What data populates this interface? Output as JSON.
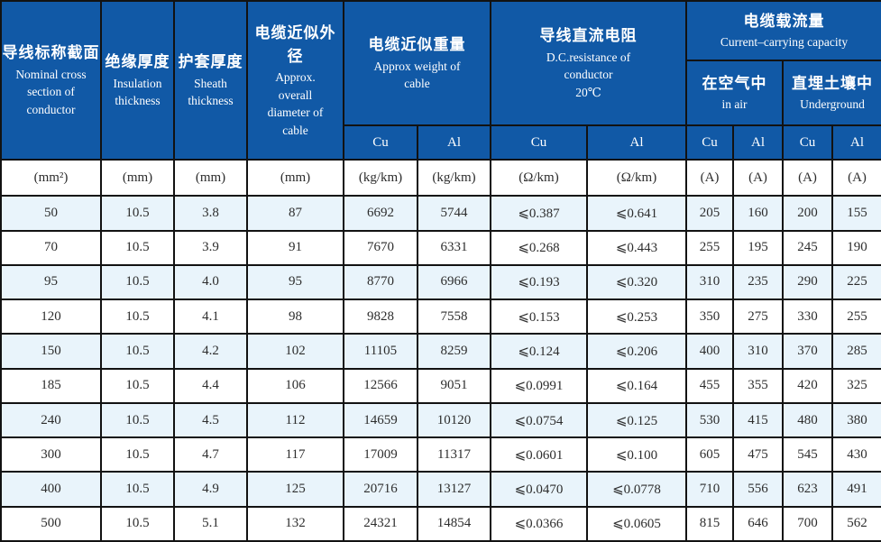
{
  "colors": {
    "header_bg": "#1159a6",
    "header_text": "#ffffff",
    "row_alt_bg": "#e9f4fb",
    "row_bg": "#ffffff",
    "border": "#121212",
    "cell_text": "#2d2d2d"
  },
  "table": {
    "groups": {
      "nominal": {
        "zh": "导线标称截面",
        "en": "Nominal cross section of conductor"
      },
      "insulation": {
        "zh": "绝缘厚度",
        "en": "Insulation thickness"
      },
      "sheath": {
        "zh": "护套厚度",
        "en": "Sheath thickness"
      },
      "diameter": {
        "zh": "电缆近似外径",
        "en": "Approx. overall diameter of cable"
      },
      "weight": {
        "zh": "电缆近似重量",
        "en": "Approx weight of cable"
      },
      "resistance": {
        "zh": "导线直流电阻",
        "en": "D.C.resistance of conductor",
        "temp": "20℃"
      },
      "capacity": {
        "zh": "电缆载流量",
        "en": "Current–carrying capacity"
      },
      "in_air": {
        "zh": "在空气中",
        "en": "in air"
      },
      "underground": {
        "zh": "直埋土壤中",
        "en": "Underground"
      }
    },
    "material_labels": [
      "Cu",
      "Al",
      "Cu",
      "Al",
      "Cu",
      "Al",
      "Cu",
      "Al"
    ],
    "units": [
      "(mm²)",
      "(mm)",
      "(mm)",
      "(mm)",
      "(kg/km)",
      "(kg/km)",
      "(Ω/km)",
      "(Ω/km)",
      "(A)",
      "(A)",
      "(A)",
      "(A)"
    ],
    "rows": [
      [
        "50",
        "10.5",
        "3.8",
        "87",
        "6692",
        "5744",
        "⩽0.387",
        "⩽0.641",
        "205",
        "160",
        "200",
        "155"
      ],
      [
        "70",
        "10.5",
        "3.9",
        "91",
        "7670",
        "6331",
        "⩽0.268",
        "⩽0.443",
        "255",
        "195",
        "245",
        "190"
      ],
      [
        "95",
        "10.5",
        "4.0",
        "95",
        "8770",
        "6966",
        "⩽0.193",
        "⩽0.320",
        "310",
        "235",
        "290",
        "225"
      ],
      [
        "120",
        "10.5",
        "4.1",
        "98",
        "9828",
        "7558",
        "⩽0.153",
        "⩽0.253",
        "350",
        "275",
        "330",
        "255"
      ],
      [
        "150",
        "10.5",
        "4.2",
        "102",
        "11105",
        "8259",
        "⩽0.124",
        "⩽0.206",
        "400",
        "310",
        "370",
        "285"
      ],
      [
        "185",
        "10.5",
        "4.4",
        "106",
        "12566",
        "9051",
        "⩽0.0991",
        "⩽0.164",
        "455",
        "355",
        "420",
        "325"
      ],
      [
        "240",
        "10.5",
        "4.5",
        "112",
        "14659",
        "10120",
        "⩽0.0754",
        "⩽0.125",
        "530",
        "415",
        "480",
        "380"
      ],
      [
        "300",
        "10.5",
        "4.7",
        "117",
        "17009",
        "11317",
        "⩽0.0601",
        "⩽0.100",
        "605",
        "475",
        "545",
        "430"
      ],
      [
        "400",
        "10.5",
        "4.9",
        "125",
        "20716",
        "13127",
        "⩽0.0470",
        "⩽0.0778",
        "710",
        "556",
        "623",
        "491"
      ],
      [
        "500",
        "10.5",
        "5.1",
        "132",
        "24321",
        "14854",
        "⩽0.0366",
        "⩽0.0605",
        "815",
        "646",
        "700",
        "562"
      ]
    ]
  }
}
